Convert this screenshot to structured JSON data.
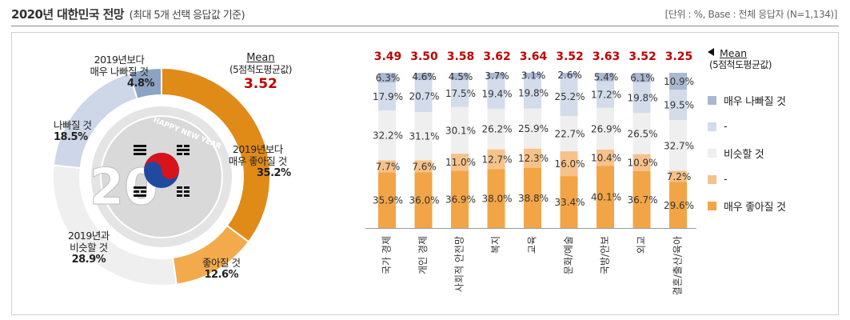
{
  "header": {
    "title": "2020년 대한민국 전망",
    "subtitle": "(최대 5개 선택 응답값 기준)",
    "unit": "[단위 : %, Base : 전체 응답자 (N=1,134)]"
  },
  "donut": {
    "mean_label": "Mean",
    "mean_sub": "(5점척도평균값)",
    "mean_value": "3.52",
    "center_badge_text": "HAPPY NEW YEAR",
    "center_year_text": "20",
    "slices": [
      {
        "label_line1": "2019년보다",
        "label_line2": "매우 좋아질 것",
        "pct": "35.2%",
        "value": 35.2,
        "color": "#e08a18"
      },
      {
        "label_line1": "좋아질 것",
        "label_line2": "",
        "pct": "12.6%",
        "value": 12.6,
        "color": "#f2aa4c"
      },
      {
        "label_line1": "2019년과",
        "label_line2": "비슷할 것",
        "pct": "28.9%",
        "value": 28.9,
        "color": "#efefef"
      },
      {
        "label_line1": "나빠질 것",
        "label_line2": "",
        "pct": "18.5%",
        "value": 18.5,
        "color": "#cdd7e8"
      },
      {
        "label_line1": "2019년보다",
        "label_line2": "매우 나빠질 것",
        "pct": "4.8%",
        "value": 4.8,
        "color": "#8da3c3"
      }
    ]
  },
  "legend": {
    "mean_label": "Mean",
    "mean_sub": "(5점척도평균값)",
    "items": [
      {
        "label": "매우 나빠질 것",
        "color": "#a9b9d2"
      },
      {
        "label": "-",
        "color": "#d3dcea"
      },
      {
        "label": "비슷할 것",
        "color": "#efefef"
      },
      {
        "label": "-",
        "color": "#f6c28a"
      },
      {
        "label": "매우 좋아질 것",
        "color": "#f2a546"
      }
    ]
  },
  "chart_data": {
    "type": "bar",
    "stacked": true,
    "percent_stacked": true,
    "categories": [
      "국가 경제",
      "개인 경제",
      "사회적 안전망",
      "복지",
      "교육",
      "문화/예술",
      "국방/안보",
      "외교",
      "결혼/출산/육아"
    ],
    "means": [
      "3.49",
      "3.50",
      "3.58",
      "3.62",
      "3.64",
      "3.52",
      "3.63",
      "3.52",
      "3.25"
    ],
    "series": [
      {
        "name": "매우 좋아질 것",
        "values": [
          35.9,
          36.0,
          36.9,
          38.0,
          38.8,
          33.4,
          40.1,
          36.7,
          29.6
        ],
        "color": "#f2a546"
      },
      {
        "name": "-",
        "values": [
          7.7,
          7.6,
          11.0,
          12.7,
          12.3,
          16.0,
          10.4,
          10.9,
          7.2
        ],
        "color": "#f6c28a"
      },
      {
        "name": "비슷할 것",
        "values": [
          32.2,
          31.1,
          30.1,
          26.2,
          25.9,
          22.7,
          26.9,
          26.5,
          32.7
        ],
        "color": "#efefef"
      },
      {
        "name": "-",
        "values": [
          17.9,
          20.7,
          17.5,
          19.4,
          19.8,
          25.2,
          17.2,
          19.8,
          19.5
        ],
        "color": "#d3dcea"
      },
      {
        "name": "매우 나빠질 것",
        "values": [
          6.3,
          4.6,
          4.5,
          3.7,
          3.1,
          2.6,
          5.4,
          6.1,
          10.9
        ],
        "color": "#a9b9d2"
      }
    ],
    "value_labels": [
      [
        "35.9%",
        "36.0%",
        "36.9%",
        "38.0%",
        "38.8%",
        "33.4%",
        "40.1%",
        "36.7%",
        "29.6%"
      ],
      [
        "7.7%",
        "7.6%",
        "11.0%",
        "12.7%",
        "12.3%",
        "16.0%",
        "10.4%",
        "10.9%",
        "7.2%"
      ],
      [
        "32.2%",
        "31.1%",
        "30.1%",
        "26.2%",
        "25.9%",
        "22.7%",
        "26.9%",
        "26.5%",
        "32.7%"
      ],
      [
        "17.9%",
        "20.7%",
        "17.5%",
        "19.4%",
        "19.8%",
        "25.2%",
        "17.2%",
        "19.8%",
        "19.5%"
      ],
      [
        "6.3%",
        "4.6%",
        "4.5%",
        "3.7%",
        "3.1%",
        "2.6%",
        "5.4%",
        "6.1%",
        "10.9%"
      ]
    ],
    "mean_color": "#c00000",
    "legend_position": "right",
    "grid": false
  }
}
